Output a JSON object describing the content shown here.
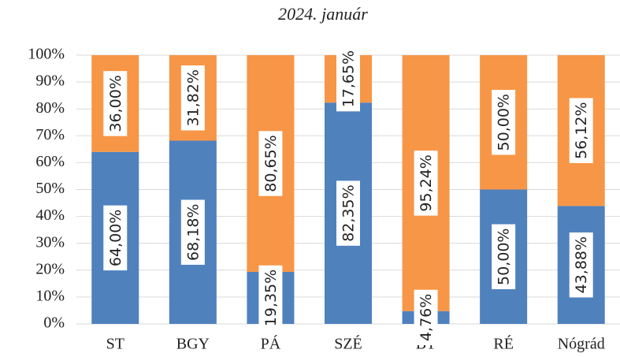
{
  "chart_data": {
    "type": "stacked_bar",
    "title": "2024. január",
    "categories": [
      "ST",
      "BGY",
      "PÁ",
      "SZÉ",
      "BT",
      "RÉ",
      "Nógrád"
    ],
    "series": [
      {
        "color": "#4f81bd",
        "values": [
          64,
          68.18,
          19.35,
          82.35,
          4.76,
          50,
          43.88
        ],
        "value_labels": [
          "64,00%",
          "68,18%",
          "19,35%",
          "82,35%",
          "4,76%",
          "50,00%",
          "43,88%"
        ]
      },
      {
        "color": "#f79646",
        "values": [
          36,
          31.82,
          80.65,
          17.65,
          95.24,
          50,
          56.12
        ],
        "value_labels": [
          "36,00%",
          "31,82%",
          "80,65%",
          "17,65%",
          "95,24%",
          "50,00%",
          "56,12%"
        ]
      }
    ],
    "ylim": [
      0,
      100
    ],
    "yticks": [
      {
        "value": 0,
        "label": "0%"
      },
      {
        "value": 10,
        "label": "10%"
      },
      {
        "value": 20,
        "label": "20%"
      },
      {
        "value": 30,
        "label": "30%"
      },
      {
        "value": 40,
        "label": "40%"
      },
      {
        "value": 50,
        "label": "50%"
      },
      {
        "value": 60,
        "label": "60%"
      },
      {
        "value": 70,
        "label": "70%"
      },
      {
        "value": 80,
        "label": "80%"
      },
      {
        "value": 90,
        "label": "90%"
      },
      {
        "value": 100,
        "label": "100%"
      }
    ],
    "grid": true
  }
}
